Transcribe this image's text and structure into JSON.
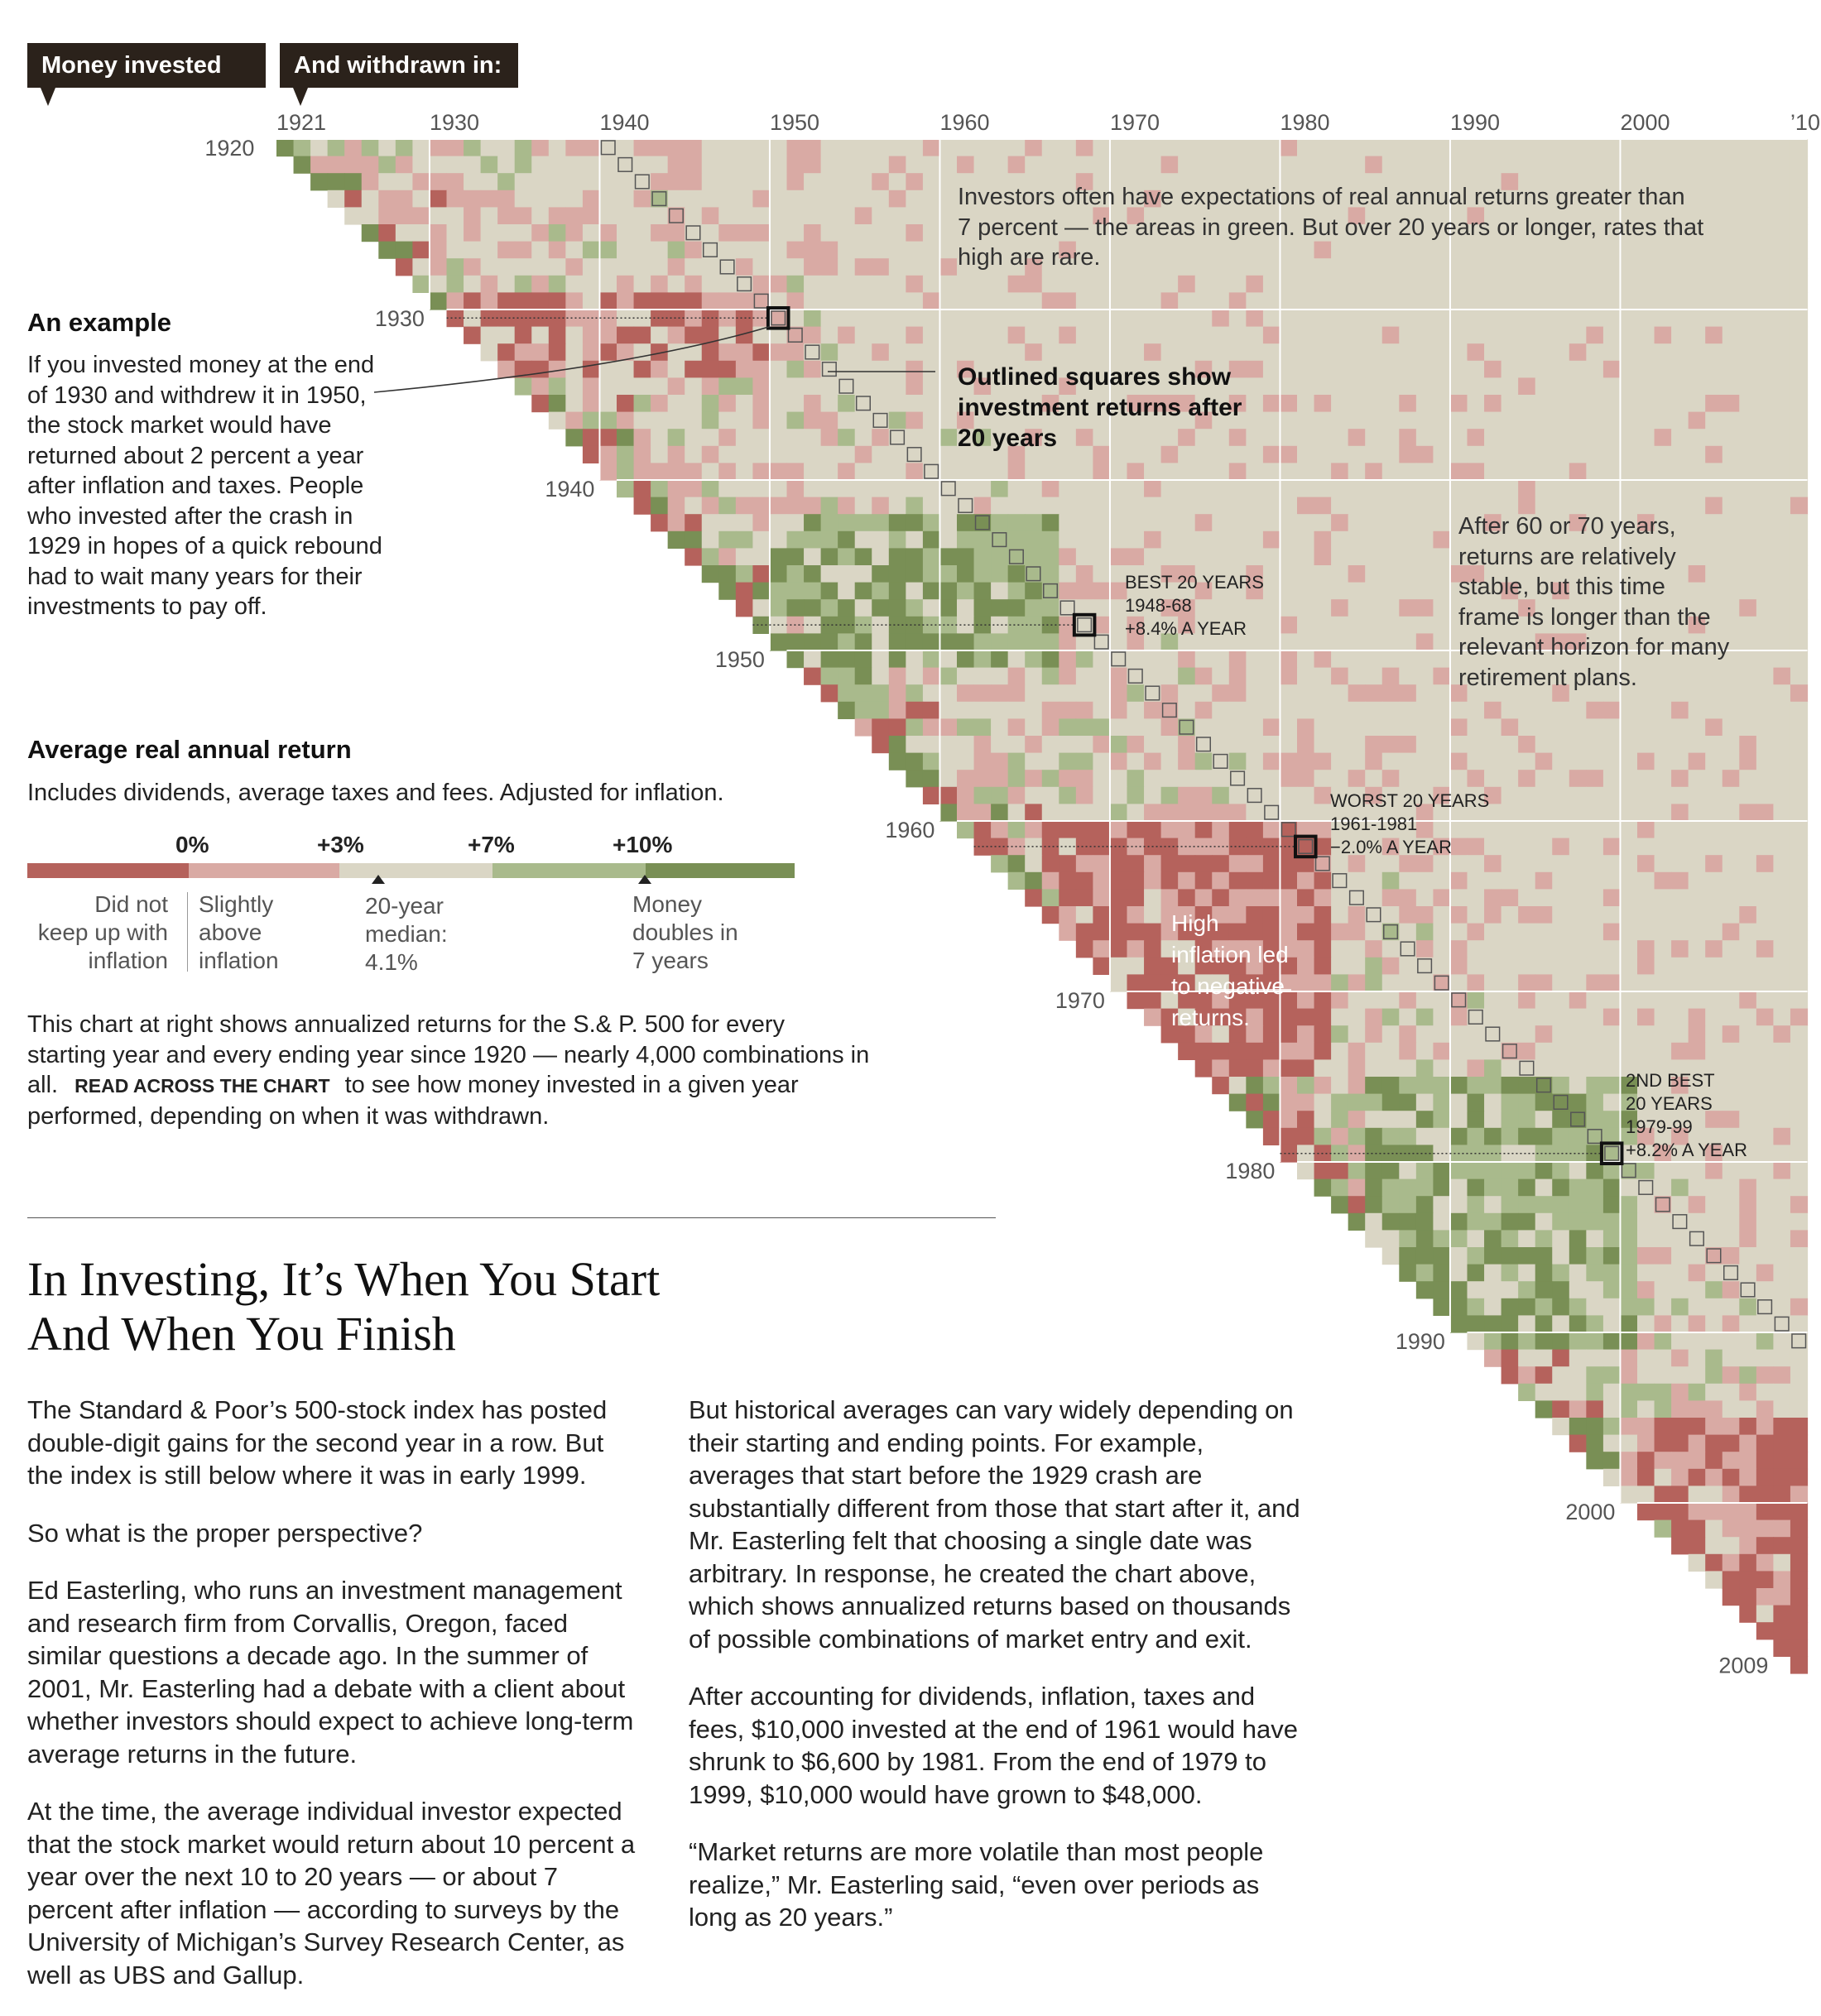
{
  "tags": {
    "invested": "Money invested in:",
    "withdrawn": "And withdrawn in:"
  },
  "top_axis": [
    {
      "label": "1921",
      "year": 1921
    },
    {
      "label": "1930",
      "year": 1930
    },
    {
      "label": "1940",
      "year": 1940
    },
    {
      "label": "1950",
      "year": 1950
    },
    {
      "label": "1960",
      "year": 1960
    },
    {
      "label": "1970",
      "year": 1970
    },
    {
      "label": "1980",
      "year": 1980
    },
    {
      "label": "1990",
      "year": 1990
    },
    {
      "label": "2000",
      "year": 2000
    },
    {
      "label": "’10",
      "year": 2010
    }
  ],
  "left_axis": [
    {
      "label": "1920",
      "year": 1920
    },
    {
      "label": "1930",
      "year": 1930
    },
    {
      "label": "1940",
      "year": 1940
    },
    {
      "label": "1950",
      "year": 1950
    },
    {
      "label": "1960",
      "year": 1960
    },
    {
      "label": "1970",
      "year": 1970
    },
    {
      "label": "1980",
      "year": 1980
    },
    {
      "label": "1990",
      "year": 1990
    },
    {
      "label": "2000",
      "year": 2000
    },
    {
      "label": "2009",
      "year": 2009
    }
  ],
  "example": {
    "title": "An example",
    "lines": [
      "If you invested money at the end",
      "of 1930 and withdrew it in 1950,",
      "the stock market would have",
      "returned about 2 percent a year",
      "after inflation and taxes. People",
      "who invested after the crash in",
      "1929 in hopes of a quick rebound",
      "had to wait many years for their",
      "investments to pay off."
    ]
  },
  "legend": {
    "title": "Average real annual return",
    "subtitle": "Includes dividends, average taxes and fees. Adjusted for inflation.",
    "ticks": [
      "0%",
      "+3%",
      "+7%",
      "+10%"
    ],
    "colors": [
      "#b5625c",
      "#d9aaa4",
      "#dad6c5",
      "#a9ba8c",
      "#798f55"
    ],
    "desc": [
      [
        "Did not",
        "keep up with",
        "inflation"
      ],
      [
        "Slightly",
        "above",
        "inflation"
      ],
      [
        "20-year",
        "median:",
        "4.1%"
      ],
      [
        "Money",
        "doubles in",
        "7 years"
      ]
    ]
  },
  "description": {
    "line1": "This chart at right shows annualized returns for the S.& P. 500 for every",
    "line2": "starting year and every ending year since 1920 — nearly 4,000 combinations in",
    "line3a": "all.",
    "line3b": "READ ACROSS THE CHART",
    "line3c": "to see how money invested in a given year",
    "line4": "performed, depending on when it was withdrawn."
  },
  "annotations": {
    "top": [
      "Investors often have expectations of real annual returns greater than",
      "7 percent — the areas in green. But over 20 years or longer, rates that",
      "high are rare."
    ],
    "outlined": [
      "Outlined squares show",
      "investment returns after",
      "20 years"
    ],
    "long": [
      "After 60 or 70 years,",
      "returns are relatively",
      "stable, but this time",
      "frame is longer than the",
      "relevant horizon for many",
      "retirement plans."
    ],
    "best": [
      "BEST 20 YEARS",
      "1948-68",
      "+8.4% A YEAR"
    ],
    "worst": [
      "WORST 20 YEARS",
      "1961-1981",
      "−2.0% A YEAR"
    ],
    "second": [
      "2ND BEST",
      "20 YEARS",
      "1979-99",
      "+8.2% A YEAR"
    ],
    "inflation": [
      "High",
      "inflation led",
      "to negative",
      "returns."
    ]
  },
  "headline": [
    "In Investing, It’s When You Start",
    "And When You Finish"
  ],
  "article": {
    "left": [
      "The Standard & Poor’s 500-stock index has posted double-digit gains for the second year in a row. But the index is still below where it was in early 1999.",
      "So what is the proper perspective?",
      "Ed Easterling, who runs an investment management and research firm from Corvallis, Oregon, faced similar questions a decade ago. In the summer of 2001, Mr. Easterling had a debate with a client about whether investors should expect to achieve long-term average returns in the future.",
      "At the time, the average individual investor expected that the stock market would return about 10 percent a year over the next 10 to 20 years — or about 7 percent after inflation — according to surveys by the University of Michigan’s Survey Research Center, as well as UBS and Gallup."
    ],
    "right": [
      "But historical averages can vary widely depending on their starting and ending points. For example, averages that start before the 1929 crash are substantially different from those that start after it, and Mr. Easterling felt that choosing a single date was arbitrary. In response, he created the chart above, which shows annualized returns based on thousands of possible combinations of market entry and exit.",
      "After accounting for dividends, inflation, taxes and fees, $10,000 invested at the end of 1961 would have shrunk to $6,600 by 1981. From the end of 1979 to 1999, $10,000 would have grown to $48,000.",
      "“Market returns are more volatile than most people realize,” Mr. Easterling said, “even over periods as long as 20 years.”"
    ]
  },
  "chart_data": {
    "type": "heatmap",
    "x_label": "withdrawn in",
    "y_label": "invested in",
    "x_range": [
      1921,
      2010
    ],
    "y_range": [
      1920,
      2009
    ],
    "color_bins": [
      {
        "label": "Did not keep up with inflation",
        "max": 0,
        "color": "#b5625c"
      },
      {
        "label": "Slightly above inflation",
        "min": 0,
        "max": 3,
        "color": "#d9aaa4"
      },
      {
        "label": "3% to 7%",
        "min": 3,
        "max": 7,
        "color": "#dad6c5"
      },
      {
        "label": "7% to 10%",
        "min": 7,
        "max": 10,
        "color": "#a9ba8c"
      },
      {
        "label": "Money doubles in 7 years",
        "min": 10,
        "color": "#798f55"
      }
    ],
    "highlights": [
      {
        "label": "BEST 20 YEARS",
        "start": 1948,
        "end": 1968,
        "return": 8.4
      },
      {
        "label": "WORST 20 YEARS",
        "start": 1961,
        "end": 1981,
        "return": -2.0
      },
      {
        "label": "2ND BEST 20 YEARS",
        "start": 1979,
        "end": 1999,
        "return": 8.2
      },
      {
        "label": "An example",
        "start": 1930,
        "end": 1950,
        "return": 2
      }
    ],
    "median_20yr": 4.1
  }
}
